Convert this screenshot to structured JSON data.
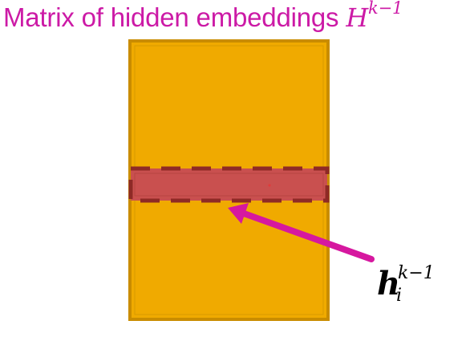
{
  "title": {
    "text": "Matrix of hidden embeddings ",
    "math_base": "H",
    "math_sup": "k−1"
  },
  "row_label": {
    "base": "h",
    "sub": "i",
    "sup": "k−1"
  },
  "colors": {
    "title": "#cc1aa6",
    "matrix_fill": "#f0aa00",
    "matrix_border": "#c98c00",
    "row_fill": "#c9504f",
    "row_border": "#8e2a26",
    "arrow": "#d6189f"
  }
}
